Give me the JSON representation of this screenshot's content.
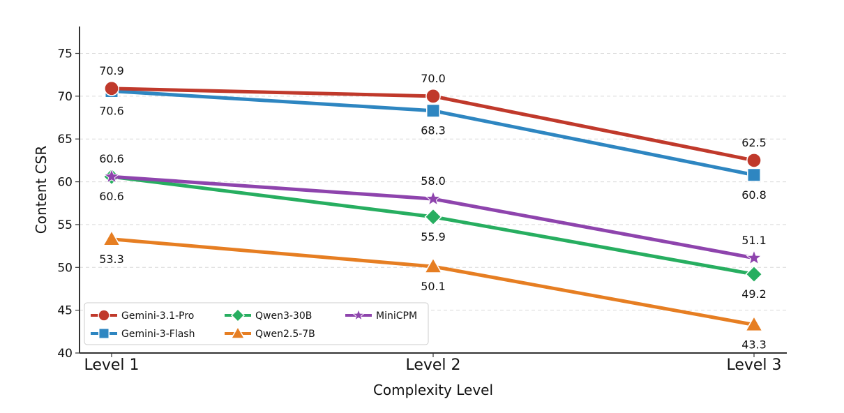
{
  "chart_data": {
    "type": "line",
    "xlabel": "Complexity Level",
    "ylabel": "Content CSR",
    "categories": [
      "Level 1",
      "Level 2",
      "Level 3"
    ],
    "ylim": [
      40,
      78
    ],
    "yticks": [
      40,
      45,
      50,
      55,
      60,
      65,
      70,
      75
    ],
    "grid": "horizontal dashed",
    "legend": "lower-left",
    "series": [
      {
        "name": "Gemini-3.1-Pro",
        "values": [
          70.9,
          70.0,
          62.5
        ],
        "labels": [
          "70.9",
          "70.0",
          "62.5"
        ],
        "label_pos": [
          "above",
          "above",
          "above"
        ],
        "color": "#c0392b",
        "marker": "circle"
      },
      {
        "name": "Gemini-3-Flash",
        "values": [
          70.6,
          68.3,
          60.8
        ],
        "labels": [
          "70.6",
          "68.3",
          "60.8"
        ],
        "label_pos": [
          "below",
          "below",
          "below"
        ],
        "color": "#2e86c1",
        "marker": "square"
      },
      {
        "name": "Qwen3-30B",
        "values": [
          60.6,
          55.9,
          49.2
        ],
        "labels": [
          "60.6",
          "55.9",
          "49.2"
        ],
        "label_pos": [
          "below",
          "below",
          "below"
        ],
        "color": "#27ae60",
        "marker": "diamond"
      },
      {
        "name": "Qwen2.5-7B",
        "values": [
          53.3,
          50.1,
          43.3
        ],
        "labels": [
          "53.3",
          "50.1",
          "43.3"
        ],
        "label_pos": [
          "below",
          "below",
          "below"
        ],
        "color": "#e67e22",
        "marker": "triangle"
      },
      {
        "name": "MiniCPM",
        "values": [
          60.6,
          58.0,
          51.1
        ],
        "labels": [
          "60.6",
          "58.0",
          "51.1"
        ],
        "label_pos": [
          "above",
          "above",
          "above"
        ],
        "color": "#8e44ad",
        "marker": "star"
      }
    ],
    "legend_order": [
      "Gemini-3.1-Pro",
      "Qwen3-30B",
      "MiniCPM",
      "Gemini-3-Flash",
      "Qwen2.5-7B"
    ]
  }
}
